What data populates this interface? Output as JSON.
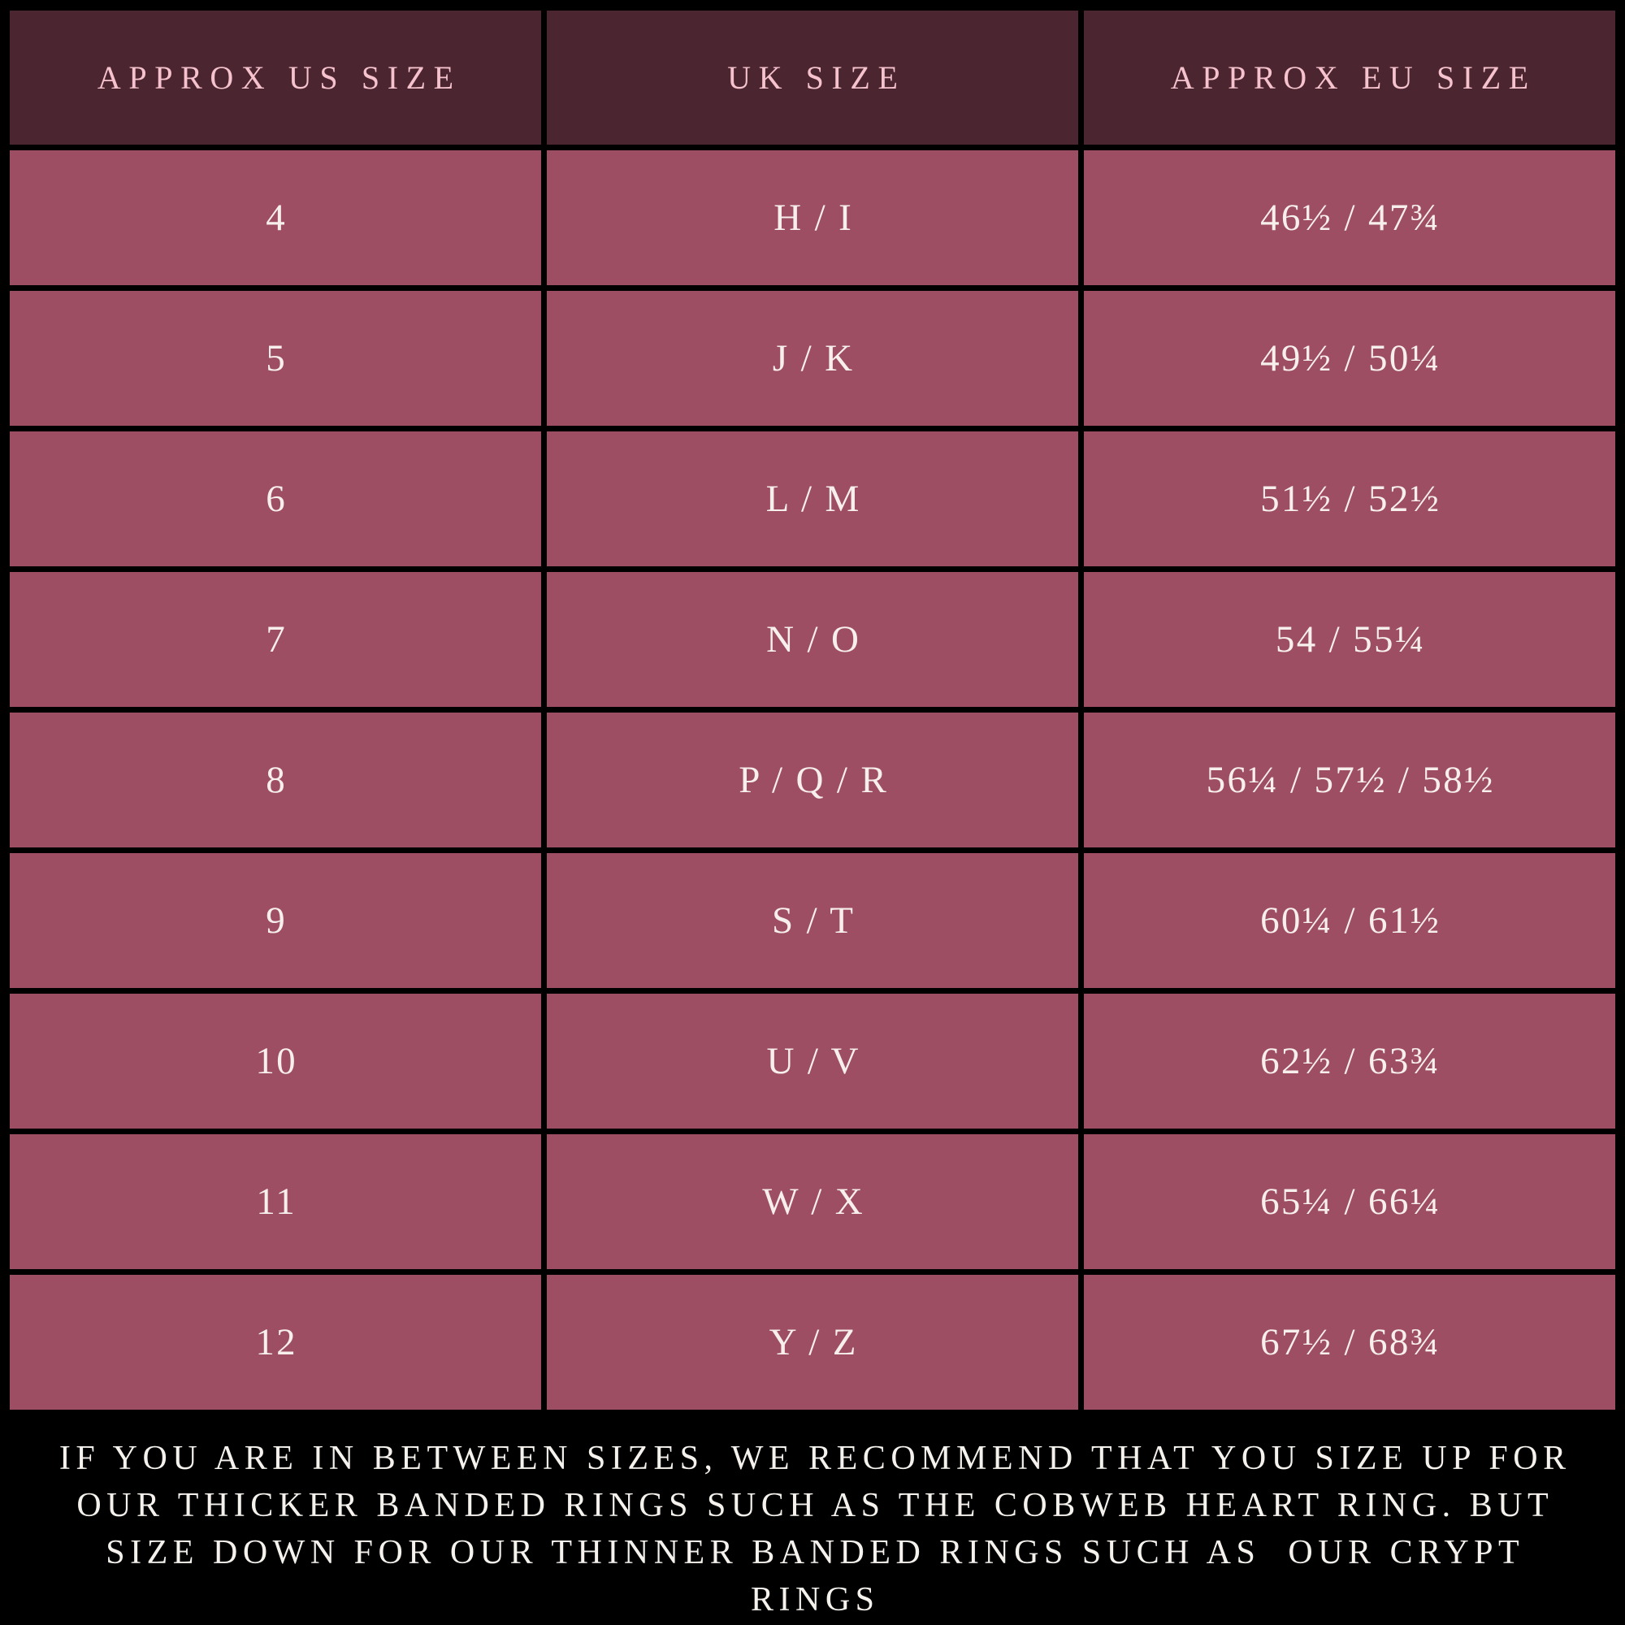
{
  "colors": {
    "background": "#000000",
    "header_bg": "#4b2630",
    "row_bg": "#9e4e62",
    "header_text": "#f5c2cd",
    "row_text": "#f7efec",
    "note_text": "#f5f2ee"
  },
  "chart_data": {
    "type": "table",
    "title": "",
    "columns": [
      "APPROX US SIZE",
      "UK SIZE",
      "APPROX EU SIZE"
    ],
    "rows": [
      [
        "4",
        "H / I",
        "46½ / 47¾"
      ],
      [
        "5",
        "J / K",
        "49½ / 50¼"
      ],
      [
        "6",
        "L / M",
        "51½ / 52½"
      ],
      [
        "7",
        "N / O",
        "54 / 55¼"
      ],
      [
        "8",
        "P / Q / R",
        "56¼ / 57½ / 58½"
      ],
      [
        "9",
        "S / T",
        "60¼ / 61½"
      ],
      [
        "10",
        "U / V",
        "62½ / 63¾"
      ],
      [
        "11",
        "W / X",
        "65¼ / 66¼"
      ],
      [
        "12",
        "Y / Z",
        "67½ / 68¾"
      ]
    ],
    "note_lines": [
      "IF YOU ARE IN BETWEEN SIZES, WE RECOMMEND THAT YOU SIZE UP FOR",
      "OUR THICKER BANDED RINGS SUCH AS THE COBWEB HEART RING. BUT",
      "SIZE DOWN FOR OUR THINNER BANDED RINGS SUCH AS  OUR CRYPT",
      "RINGS"
    ]
  }
}
